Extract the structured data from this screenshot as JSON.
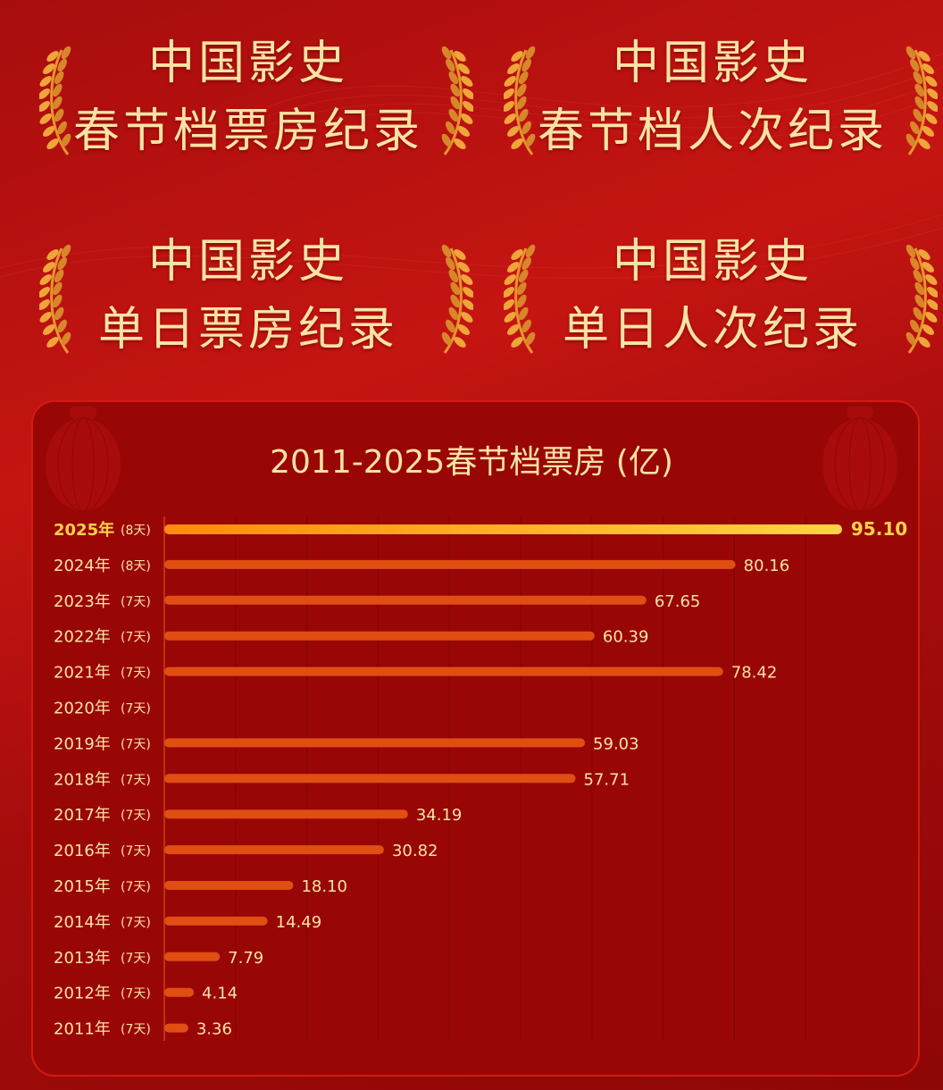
{
  "awards": [
    {
      "line1": "中国影史",
      "line2": "春节档票房纪录"
    },
    {
      "line1": "中国影史",
      "line2": "春节档人次纪录"
    },
    {
      "line1": "中国影史",
      "line2": "单日票房纪录"
    },
    {
      "line1": "中国影史",
      "line2": "单日人次纪录"
    }
  ],
  "colors": {
    "bar": "#e04e12",
    "highlight_start": "#ff8a10",
    "highlight_end": "#ffd24a",
    "label": "#fbe3a4",
    "highlight_label": "#ffd24a"
  },
  "chart_data": {
    "type": "bar",
    "orientation": "horizontal",
    "title": "2011-2025春节档票房 (亿)",
    "categories": [
      "2025年",
      "2024年",
      "2023年",
      "2022年",
      "2021年",
      "2020年",
      "2019年",
      "2018年",
      "2017年",
      "2016年",
      "2015年",
      "2014年",
      "2013年",
      "2012年",
      "2011年"
    ],
    "days": [
      "(8天)",
      "(8天)",
      "(7天)",
      "(7天)",
      "(7天)",
      "(7天)",
      "(7天)",
      "(7天)",
      "(7天)",
      "(7天)",
      "(7天)",
      "(7天)",
      "(7天)",
      "(7天)",
      "(7天)"
    ],
    "values": [
      95.1,
      80.16,
      67.65,
      60.39,
      78.42,
      null,
      59.03,
      57.71,
      34.19,
      30.82,
      18.1,
      14.49,
      7.79,
      4.14,
      3.36
    ],
    "value_labels": [
      "95.10",
      "80.16",
      "67.65",
      "60.39",
      "78.42",
      "",
      "59.03",
      "57.71",
      "34.19",
      "30.82",
      "18.10",
      "14.49",
      "7.79",
      "4.14",
      "3.36"
    ],
    "highlight": "2025年",
    "xlim": [
      0,
      100
    ],
    "grid": true
  }
}
